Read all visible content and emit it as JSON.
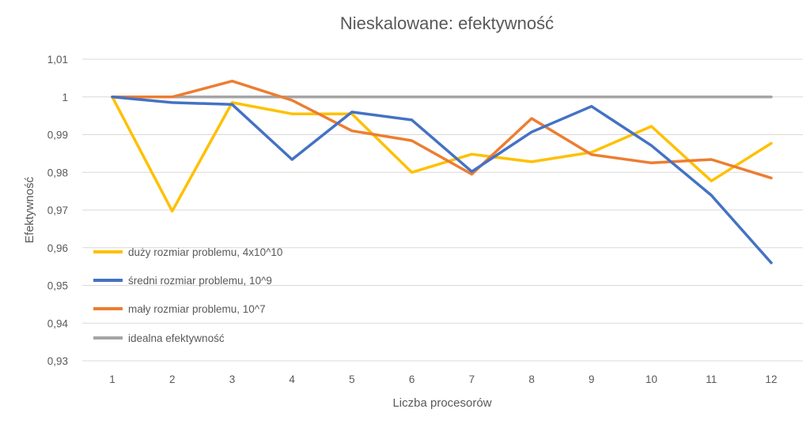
{
  "chart_data": {
    "type": "line",
    "title": "Nieskalowane: efektywność",
    "xlabel": "Liczba procesorów",
    "ylabel": "Efektywność",
    "x": [
      1,
      2,
      3,
      4,
      5,
      6,
      7,
      8,
      9,
      10,
      11,
      12
    ],
    "x_tick_labels": [
      "1",
      "2",
      "3",
      "4",
      "5",
      "6",
      "7",
      "8",
      "9",
      "10",
      "11",
      "12"
    ],
    "ylim": [
      0.93,
      1.01
    ],
    "y_ticks": [
      0.93,
      0.94,
      0.95,
      0.96,
      0.97,
      0.98,
      0.99,
      1.0,
      1.01
    ],
    "y_tick_labels": [
      "0,93",
      "0,94",
      "0,95",
      "0,96",
      "0,97",
      "0,98",
      "0,99",
      "1",
      "1,01"
    ],
    "grid": "horizontal",
    "legend_position": "inside-left",
    "series": [
      {
        "name": "duży rozmiar problemu, 4x10^10",
        "color": "#ffc000",
        "values": [
          1.0,
          0.9697,
          0.9985,
          0.9955,
          0.9955,
          0.98,
          0.9848,
          0.9828,
          0.9853,
          0.9922,
          0.9777,
          0.9877
        ]
      },
      {
        "name": "średni rozmiar problemu, 10^9",
        "color": "#4472c4",
        "values": [
          1.0,
          0.9985,
          0.998,
          0.9834,
          0.996,
          0.9939,
          0.9802,
          0.9907,
          0.9975,
          0.9871,
          0.9739,
          0.956
        ]
      },
      {
        "name": "mały rozmiar problemu, 10^7",
        "color": "#ed7d31",
        "values": [
          1.0,
          1.0,
          1.0042,
          0.9991,
          0.991,
          0.9884,
          0.9795,
          0.9943,
          0.9847,
          0.9825,
          0.9834,
          0.9785
        ]
      },
      {
        "name": "idealna efektywność",
        "color": "#a5a5a5",
        "values": [
          1,
          1,
          1,
          1,
          1,
          1,
          1,
          1,
          1,
          1,
          1,
          1
        ]
      }
    ]
  }
}
